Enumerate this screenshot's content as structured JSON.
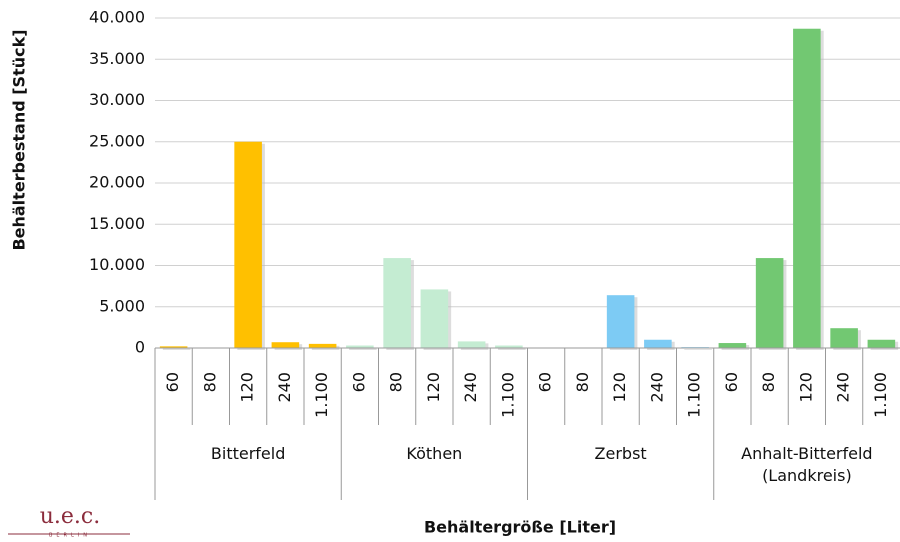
{
  "chart_data": {
    "type": "bar",
    "y_axis_label": "Behälterbestand [Stück]",
    "x_axis_label": "Behältergröße [Liter]",
    "categories": [
      "60",
      "80",
      "120",
      "240",
      "1.100"
    ],
    "series": [
      {
        "name": "Bitterfeld",
        "color": "#ffc000",
        "values": [
          200,
          0,
          25000,
          700,
          500
        ]
      },
      {
        "name": "Köthen",
        "color": "#c4ecd2",
        "values": [
          300,
          10900,
          7100,
          800,
          300
        ]
      },
      {
        "name": "Zerbst",
        "color": "#7dcbf4",
        "values": [
          0,
          0,
          6400,
          1000,
          100
        ]
      },
      {
        "name": "Anhalt-Bitterfeld (Landkreis)",
        "color": "#72c872",
        "values": [
          600,
          10900,
          38700,
          2400,
          1000
        ]
      }
    ],
    "ylim": [
      0,
      40000
    ],
    "yticks": [
      0,
      {
        "value": 5000,
        "label": "5.000"
      },
      {
        "value": 10000,
        "label": "10.000"
      },
      {
        "value": 15000,
        "label": "15.000"
      },
      {
        "value": 20000,
        "label": "20.000"
      },
      {
        "value": 25000,
        "label": "25.000"
      },
      {
        "value": 30000,
        "label": "30.000"
      },
      {
        "value": 35000,
        "label": "35.000"
      },
      {
        "value": 40000,
        "label": "40.000"
      }
    ],
    "grid": true
  },
  "logo": {
    "title": "u.e.c.",
    "subtitle": "BERLIN"
  }
}
